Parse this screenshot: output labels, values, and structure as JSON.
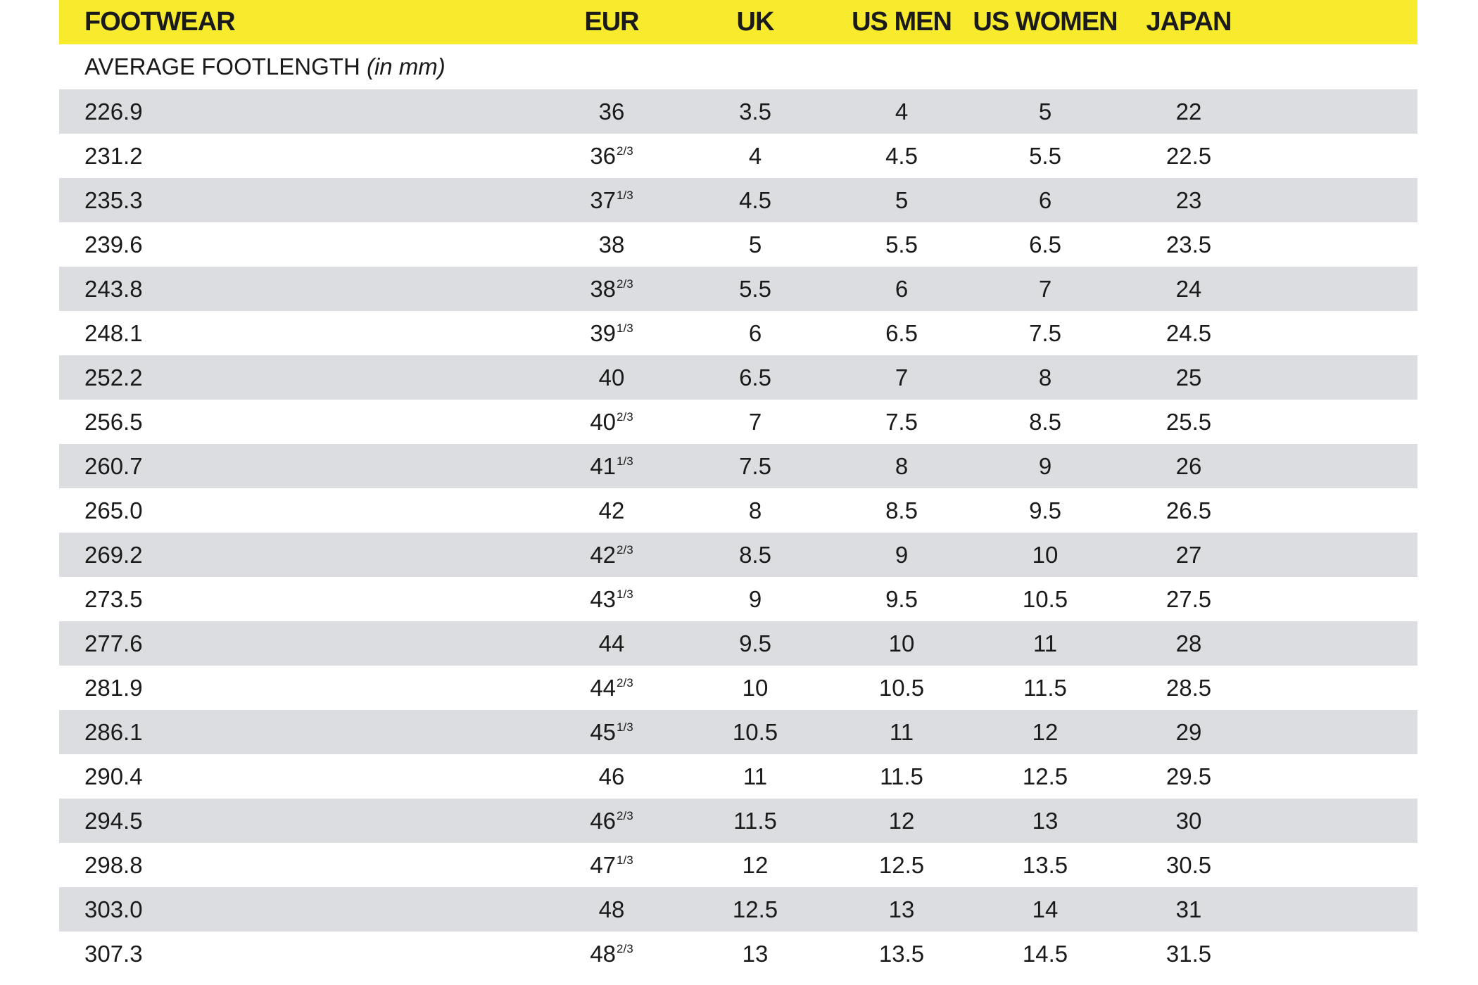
{
  "header": {
    "columns": [
      "FOOTWEAR",
      "EUR",
      "UK",
      "US MEN",
      "US WOMEN",
      "JAPAN"
    ]
  },
  "subheader": {
    "label": "AVERAGE FOOTLENGTH",
    "unit": "(in mm)"
  },
  "table": {
    "rows": [
      {
        "footlength": "226.9",
        "eur": "36",
        "uk": "3.5",
        "us_men": "4",
        "us_women": "5",
        "japan": "22"
      },
      {
        "footlength": "231.2",
        "eur": "36",
        "eur_fraction": "2/3",
        "uk": "4",
        "us_men": "4.5",
        "us_women": "5.5",
        "japan": "22.5"
      },
      {
        "footlength": "235.3",
        "eur": "37",
        "eur_fraction": "1/3",
        "uk": "4.5",
        "us_men": "5",
        "us_women": "6",
        "japan": "23"
      },
      {
        "footlength": "239.6",
        "eur": "38",
        "uk": "5",
        "us_men": "5.5",
        "us_women": "6.5",
        "japan": "23.5"
      },
      {
        "footlength": "243.8",
        "eur": "38",
        "eur_fraction": "2/3",
        "uk": "5.5",
        "us_men": "6",
        "us_women": "7",
        "japan": "24"
      },
      {
        "footlength": "248.1",
        "eur": "39",
        "eur_fraction": "1/3",
        "uk": "6",
        "us_men": "6.5",
        "us_women": "7.5",
        "japan": "24.5"
      },
      {
        "footlength": "252.2",
        "eur": "40",
        "uk": "6.5",
        "us_men": "7",
        "us_women": "8",
        "japan": "25"
      },
      {
        "footlength": "256.5",
        "eur": "40",
        "eur_fraction": "2/3",
        "uk": "7",
        "us_men": "7.5",
        "us_women": "8.5",
        "japan": "25.5"
      },
      {
        "footlength": "260.7",
        "eur": "41",
        "eur_fraction": "1/3",
        "uk": "7.5",
        "us_men": "8",
        "us_women": "9",
        "japan": "26"
      },
      {
        "footlength": "265.0",
        "eur": "42",
        "uk": "8",
        "us_men": "8.5",
        "us_women": "9.5",
        "japan": "26.5"
      },
      {
        "footlength": "269.2",
        "eur": "42",
        "eur_fraction": "2/3",
        "uk": "8.5",
        "us_men": "9",
        "us_women": "10",
        "japan": "27"
      },
      {
        "footlength": "273.5",
        "eur": "43",
        "eur_fraction": "1/3",
        "uk": "9",
        "us_men": "9.5",
        "us_women": "10.5",
        "japan": "27.5"
      },
      {
        "footlength": "277.6",
        "eur": "44",
        "uk": "9.5",
        "us_men": "10",
        "us_women": "11",
        "japan": "28"
      },
      {
        "footlength": "281.9",
        "eur": "44",
        "eur_fraction": "2/3",
        "uk": "10",
        "us_men": "10.5",
        "us_women": "11.5",
        "japan": "28.5"
      },
      {
        "footlength": "286.1",
        "eur": "45",
        "eur_fraction": "1/3",
        "uk": "10.5",
        "us_men": "11",
        "us_women": "12",
        "japan": "29"
      },
      {
        "footlength": "290.4",
        "eur": "46",
        "uk": "11",
        "us_men": "11.5",
        "us_women": "12.5",
        "japan": "29.5"
      },
      {
        "footlength": "294.5",
        "eur": "46",
        "eur_fraction": "2/3",
        "uk": "11.5",
        "us_men": "12",
        "us_women": "13",
        "japan": "30"
      },
      {
        "footlength": "298.8",
        "eur": "47",
        "eur_fraction": "1/3",
        "uk": "12",
        "us_men": "12.5",
        "us_women": "13.5",
        "japan": "30.5"
      },
      {
        "footlength": "303.0",
        "eur": "48",
        "uk": "12.5",
        "us_men": "13",
        "us_women": "14",
        "japan": "31"
      },
      {
        "footlength": "307.3",
        "eur": "48",
        "eur_fraction": "2/3",
        "uk": "13",
        "us_men": "13.5",
        "us_women": "14.5",
        "japan": "31.5"
      }
    ]
  }
}
